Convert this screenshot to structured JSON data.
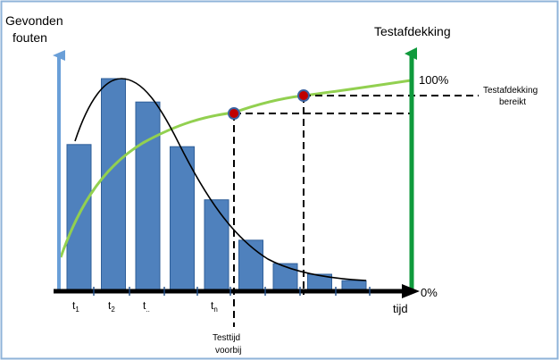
{
  "labels": {
    "left_axis_line1": "Gevonden",
    "left_axis_line2": "fouten",
    "right_axis": "Testafdekking",
    "pct_100": "100%",
    "pct_0": "0%",
    "coverage_reached_line1": "Testafdekking",
    "coverage_reached_line2": "bereikt",
    "time_axis": "tijd",
    "test_time_line1": "Testtijd",
    "test_time_line2": "voorbij",
    "tick_t1_base": "t",
    "tick_t1_sub": "1",
    "tick_t2_base": "t",
    "tick_t2_sub": "2",
    "tick_tdots_base": "t",
    "tick_tdots_sub": "..",
    "tick_tn_base": "t",
    "tick_tn_sub": "n"
  },
  "colors": {
    "frame": "#8fb3d9",
    "bar_fill": "#4f81bd",
    "bar_stroke": "#2f5f99",
    "left_axis": "#6a9fd8",
    "right_axis": "#0f9a3c",
    "coverage_curve": "#92d050",
    "fault_curve": "#000000",
    "marker_fill": "#c00000",
    "marker_stroke": "#3a62a0",
    "dashed": "#000000",
    "text": "#000000"
  },
  "chart_data": {
    "type": "bar",
    "description_fields_only_as_printed": true,
    "bar_relative_heights": [
      0.69,
      1.0,
      0.89,
      0.68,
      0.43,
      0.24,
      0.13,
      0.08,
      0.05
    ],
    "coverage_percent_scale": [
      0,
      100
    ],
    "markers": [
      {
        "name": "Testtijd voorbij",
        "coverage_fraction": 0.85
      },
      {
        "name": "Testafdekking bereikt",
        "coverage_fraction": 0.93
      }
    ]
  }
}
